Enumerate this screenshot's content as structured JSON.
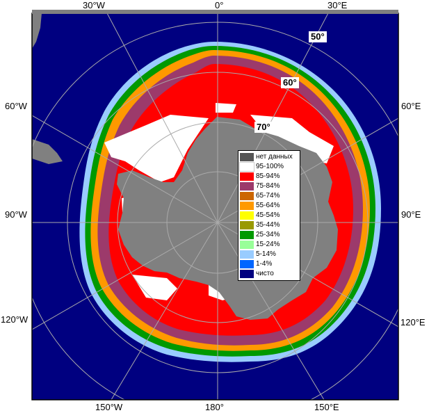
{
  "map": {
    "colors": {
      "ocean": "#000080",
      "land": "#808080",
      "no_data": "#555555",
      "grid": "#aaaaaa",
      "frame": "#000000"
    },
    "longitude_labels": {
      "top_left": "30°W",
      "top_center": "0°",
      "top_right": "30°E",
      "left_upper": "60°W",
      "left_middle": "90°W",
      "left_lower": "120°W",
      "right_upper": "60°E",
      "right_middle": "90°E",
      "right_lower": "120°E",
      "bottom_left": "150°W",
      "bottom_center": "180°",
      "bottom_right": "150°E"
    },
    "latitude_labels": {
      "lat50": "50°",
      "lat60": "60°",
      "lat70": "70°"
    }
  },
  "legend": {
    "items": [
      {
        "label": "нет данных",
        "color": "#555555"
      },
      {
        "label": "95-100%",
        "color": "#ffffff"
      },
      {
        "label": "85-94%",
        "color": "#ff0000"
      },
      {
        "label": "75-84%",
        "color": "#9c3a6b"
      },
      {
        "label": "65-74%",
        "color": "#cc6600"
      },
      {
        "label": "55-64%",
        "color": "#ff9900"
      },
      {
        "label": "45-54%",
        "color": "#ffff00"
      },
      {
        "label": "35-44%",
        "color": "#999900"
      },
      {
        "label": "25-34%",
        "color": "#009900"
      },
      {
        "label": "15-24%",
        "color": "#99ff99"
      },
      {
        "label": "5-14%",
        "color": "#99ccff"
      },
      {
        "label": "1-4%",
        "color": "#0066ff"
      },
      {
        "label": "чисто",
        "color": "#000080"
      }
    ]
  }
}
